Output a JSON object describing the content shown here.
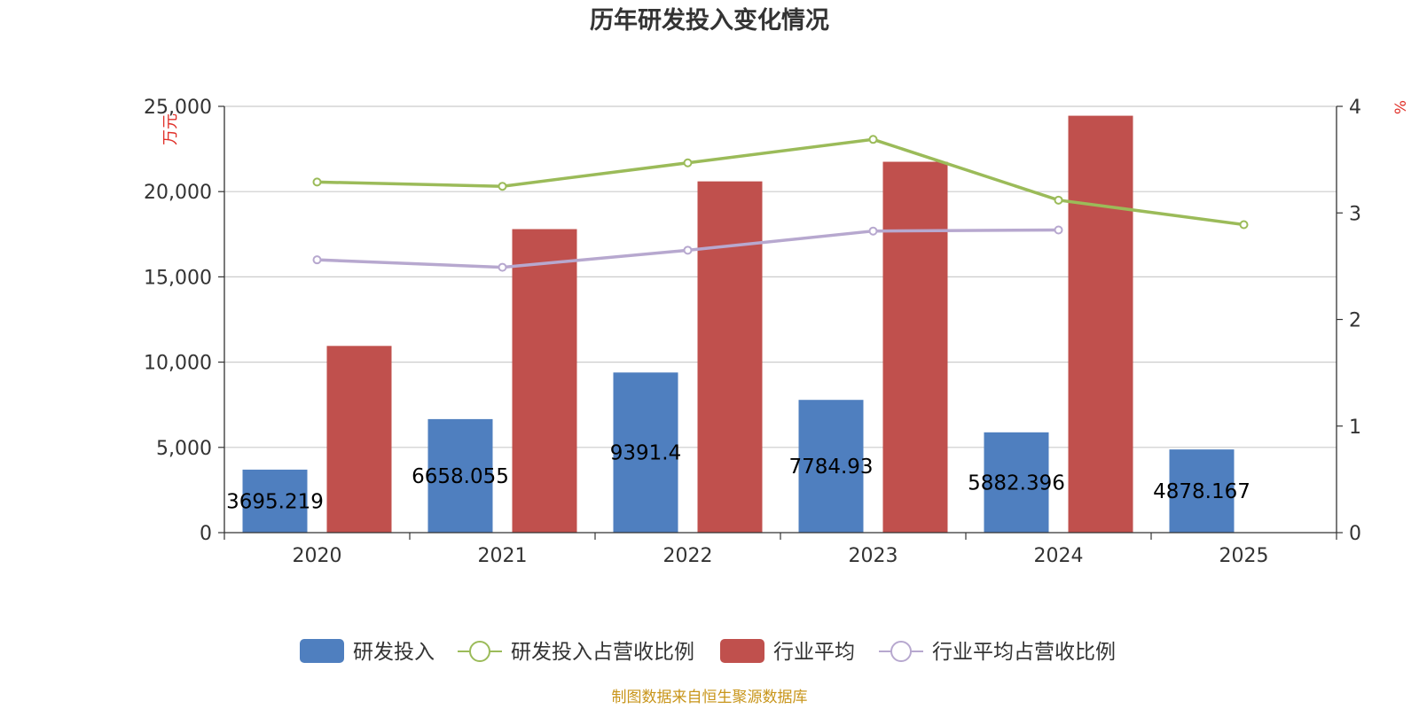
{
  "chart_data": {
    "type": "bar",
    "title": "历年研发投入变化情况",
    "categories": [
      "2020",
      "2021",
      "2022",
      "2023",
      "2024",
      "2025"
    ],
    "y_left": {
      "label": "万元",
      "ylim": [
        0,
        25000
      ],
      "ticks": [
        "0",
        "5,000",
        "10,000",
        "15,000",
        "20,000",
        "25,000"
      ]
    },
    "y_right": {
      "label": "%",
      "ylim": [
        0,
        4
      ],
      "ticks": [
        "0",
        "1",
        "2",
        "3",
        "4"
      ]
    },
    "grid": true,
    "legend_position": "bottom",
    "series": [
      {
        "name": "研发投入",
        "kind": "bar",
        "axis": "left",
        "color": "#4f7fbf",
        "values": [
          3695.219,
          6658.055,
          9391.4,
          7784.93,
          5882.396,
          4878.167
        ],
        "labels": [
          "3695.219",
          "6658.055",
          "9391.4",
          "7784.93",
          "5882.396",
          "4878.167"
        ]
      },
      {
        "name": "研发投入占营收比例",
        "kind": "line",
        "axis": "right",
        "color": "#9bbb59",
        "values": [
          3.29,
          3.25,
          3.47,
          3.69,
          3.12,
          2.89
        ]
      },
      {
        "name": "行业平均",
        "kind": "bar",
        "axis": "left",
        "color": "#c0504d",
        "values": [
          10950,
          17800,
          20600,
          21750,
          24450,
          null
        ]
      },
      {
        "name": "行业平均占营收比例",
        "kind": "line",
        "axis": "right",
        "color": "#b7a8cf",
        "values": [
          2.56,
          2.49,
          2.65,
          2.83,
          2.84,
          null
        ]
      }
    ],
    "source": "制图数据来自恒生聚源数据库"
  }
}
